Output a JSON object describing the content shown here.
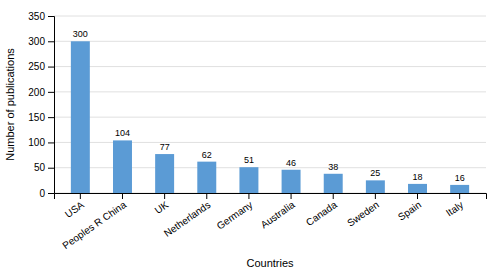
{
  "chart_data": {
    "type": "bar",
    "categories": [
      "USA",
      "Peoples R China",
      "UK",
      "Netherlands",
      "Germany",
      "Australia",
      "Canada",
      "Sweden",
      "Spain",
      "Italy"
    ],
    "values": [
      300,
      104,
      77,
      62,
      51,
      46,
      38,
      25,
      18,
      16
    ],
    "color": "#5b9bd5",
    "xlabel": "Countries",
    "ylabel": "Number of publications",
    "ylim": [
      0,
      350
    ],
    "yticks": [
      0,
      50,
      100,
      150,
      200,
      250,
      300,
      350
    ],
    "grid": true,
    "data_labels": true
  }
}
